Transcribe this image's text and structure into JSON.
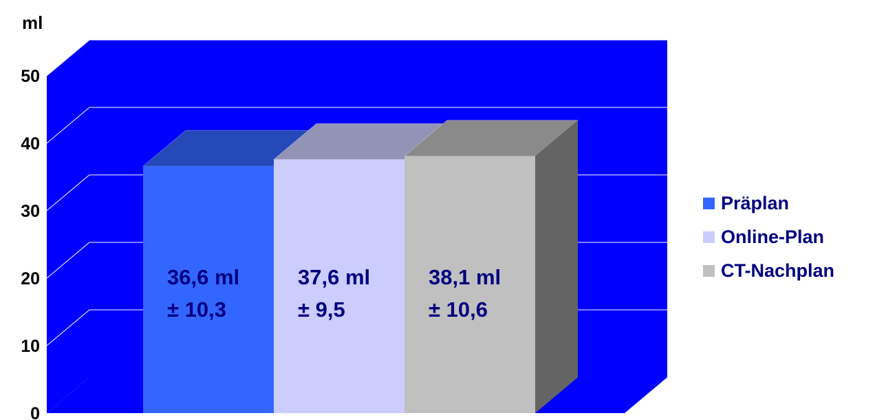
{
  "chart_data": {
    "type": "bar",
    "ylabel": "ml",
    "ylim": [
      0,
      50
    ],
    "yticks": [
      0,
      10,
      20,
      30,
      40,
      50
    ],
    "grid": true,
    "legend_position": "right",
    "series": [
      {
        "name": "Präplan",
        "value": 36.6,
        "label_line1": "36,6 ml",
        "label_line2": "± 10,3",
        "color": "#3366ff"
      },
      {
        "name": "Online-Plan",
        "value": 37.6,
        "label_line1": "37,6 ml",
        "label_line2": "± 9,5",
        "color": "#ccccff"
      },
      {
        "name": "CT-Nachplan",
        "value": 38.1,
        "label_line1": "38,1 ml",
        "label_line2": "± 10,6",
        "color": "#c0c0c0"
      }
    ],
    "colors": {
      "wall": "#0000ff",
      "floor": "#0000ff",
      "grid": "#ffffff",
      "axis_text": "#000000",
      "label_text": "#000080"
    }
  }
}
